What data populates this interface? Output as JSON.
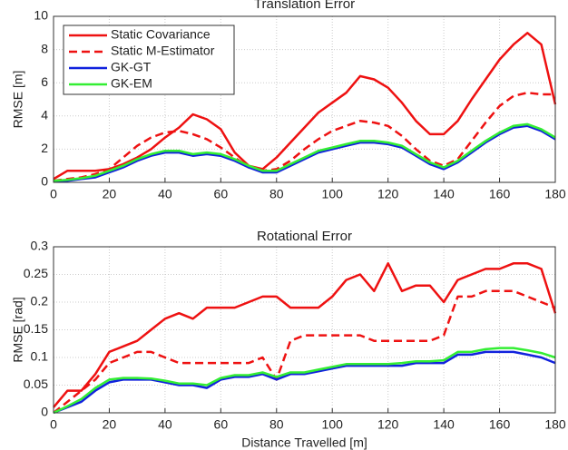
{
  "chart_data": [
    {
      "type": "line",
      "title": "Translation Error",
      "ylabel": "RMSE [m]",
      "grid": true,
      "legend": "upper left",
      "x": [
        0,
        5,
        10,
        15,
        20,
        25,
        30,
        35,
        40,
        45,
        50,
        55,
        60,
        65,
        70,
        75,
        80,
        85,
        90,
        95,
        100,
        105,
        110,
        115,
        120,
        125,
        130,
        135,
        140,
        145,
        150,
        155,
        160,
        165,
        170,
        175,
        180
      ],
      "xlim": [
        0,
        180
      ],
      "xticks": [
        0,
        20,
        40,
        60,
        80,
        100,
        120,
        140,
        160,
        180
      ],
      "ylim": [
        0,
        10
      ],
      "yticks": [
        0,
        2,
        4,
        6,
        8,
        10
      ],
      "series": [
        {
          "name": "Static Covariance",
          "color": "#ee1111",
          "dash": false,
          "values": [
            0.2,
            0.7,
            0.7,
            0.7,
            0.8,
            1.1,
            1.5,
            2.0,
            2.7,
            3.3,
            4.1,
            3.8,
            3.2,
            1.8,
            1.0,
            0.8,
            1.5,
            2.4,
            3.3,
            4.2,
            4.8,
            5.4,
            6.4,
            6.2,
            5.7,
            4.8,
            3.7,
            2.9,
            2.9,
            3.7,
            5.0,
            6.2,
            7.4,
            8.3,
            9.0,
            8.3,
            4.7
          ]
        },
        {
          "name": "Static M-Estimator",
          "color": "#ee1111",
          "dash": true,
          "values": [
            0.1,
            0.2,
            0.3,
            0.5,
            0.8,
            1.5,
            2.2,
            2.7,
            3.0,
            3.1,
            2.9,
            2.6,
            2.1,
            1.5,
            0.9,
            0.7,
            0.8,
            1.3,
            2.0,
            2.6,
            3.1,
            3.4,
            3.7,
            3.6,
            3.4,
            2.8,
            2.0,
            1.3,
            1.0,
            1.4,
            2.5,
            3.6,
            4.6,
            5.2,
            5.4,
            5.3,
            5.3
          ]
        },
        {
          "name": "GK-GT",
          "color": "#1122dd",
          "dash": false,
          "values": [
            0.05,
            0.1,
            0.2,
            0.3,
            0.6,
            0.9,
            1.3,
            1.6,
            1.8,
            1.8,
            1.6,
            1.7,
            1.6,
            1.3,
            0.9,
            0.6,
            0.6,
            1.0,
            1.4,
            1.8,
            2.0,
            2.2,
            2.4,
            2.4,
            2.3,
            2.1,
            1.6,
            1.1,
            0.8,
            1.2,
            1.8,
            2.4,
            2.9,
            3.3,
            3.4,
            3.1,
            2.6
          ]
        },
        {
          "name": "GK-EM",
          "color": "#33ee33",
          "dash": false,
          "values": [
            0.1,
            0.15,
            0.25,
            0.4,
            0.7,
            1.0,
            1.4,
            1.7,
            1.9,
            1.9,
            1.7,
            1.8,
            1.7,
            1.4,
            1.0,
            0.7,
            0.7,
            1.1,
            1.5,
            1.9,
            2.1,
            2.3,
            2.5,
            2.5,
            2.4,
            2.2,
            1.7,
            1.2,
            0.9,
            1.3,
            1.9,
            2.5,
            3.0,
            3.4,
            3.5,
            3.2,
            2.7
          ]
        }
      ]
    },
    {
      "type": "line",
      "title": "Rotational Error",
      "ylabel": "RMSE [rad]",
      "xlabel": "Distance Travelled [m]",
      "grid": true,
      "x": [
        0,
        5,
        10,
        15,
        20,
        25,
        30,
        35,
        40,
        45,
        50,
        55,
        60,
        65,
        70,
        75,
        80,
        85,
        90,
        95,
        100,
        105,
        110,
        115,
        120,
        125,
        130,
        135,
        140,
        145,
        150,
        155,
        160,
        165,
        170,
        175,
        180
      ],
      "xlim": [
        0,
        180
      ],
      "xticks": [
        0,
        20,
        40,
        60,
        80,
        100,
        120,
        140,
        160,
        180
      ],
      "ylim": [
        0,
        0.3
      ],
      "yticks": [
        0,
        0.05,
        0.1,
        0.15,
        0.2,
        0.25,
        0.3
      ],
      "series": [
        {
          "name": "Static Covariance",
          "color": "#ee1111",
          "dash": false,
          "values": [
            0.01,
            0.04,
            0.04,
            0.07,
            0.11,
            0.12,
            0.13,
            0.15,
            0.17,
            0.18,
            0.17,
            0.19,
            0.19,
            0.19,
            0.2,
            0.21,
            0.21,
            0.19,
            0.19,
            0.19,
            0.21,
            0.24,
            0.25,
            0.22,
            0.27,
            0.22,
            0.23,
            0.23,
            0.2,
            0.24,
            0.25,
            0.26,
            0.26,
            0.27,
            0.27,
            0.26,
            0.18
          ]
        },
        {
          "name": "Static M-Estimator",
          "color": "#ee1111",
          "dash": true,
          "values": [
            0,
            0.02,
            0.04,
            0.06,
            0.09,
            0.1,
            0.11,
            0.11,
            0.1,
            0.09,
            0.09,
            0.09,
            0.09,
            0.09,
            0.09,
            0.1,
            0.06,
            0.13,
            0.14,
            0.14,
            0.14,
            0.14,
            0.14,
            0.13,
            0.13,
            0.13,
            0.13,
            0.13,
            0.14,
            0.21,
            0.21,
            0.22,
            0.22,
            0.22,
            0.21,
            0.2,
            0.19
          ]
        },
        {
          "name": "GK-GT",
          "color": "#1122dd",
          "dash": false,
          "values": [
            0,
            0.01,
            0.02,
            0.04,
            0.055,
            0.06,
            0.06,
            0.06,
            0.055,
            0.05,
            0.05,
            0.045,
            0.06,
            0.065,
            0.065,
            0.07,
            0.06,
            0.07,
            0.07,
            0.075,
            0.08,
            0.085,
            0.085,
            0.085,
            0.085,
            0.085,
            0.09,
            0.09,
            0.09,
            0.105,
            0.105,
            0.11,
            0.11,
            0.11,
            0.105,
            0.1,
            0.09
          ]
        },
        {
          "name": "GK-EM",
          "color": "#33ee33",
          "dash": false,
          "values": [
            0,
            0.012,
            0.025,
            0.045,
            0.06,
            0.063,
            0.063,
            0.062,
            0.058,
            0.053,
            0.053,
            0.05,
            0.063,
            0.068,
            0.068,
            0.073,
            0.065,
            0.073,
            0.073,
            0.078,
            0.083,
            0.088,
            0.088,
            0.088,
            0.088,
            0.09,
            0.093,
            0.093,
            0.095,
            0.11,
            0.11,
            0.115,
            0.117,
            0.117,
            0.113,
            0.108,
            0.1
          ]
        }
      ]
    }
  ]
}
